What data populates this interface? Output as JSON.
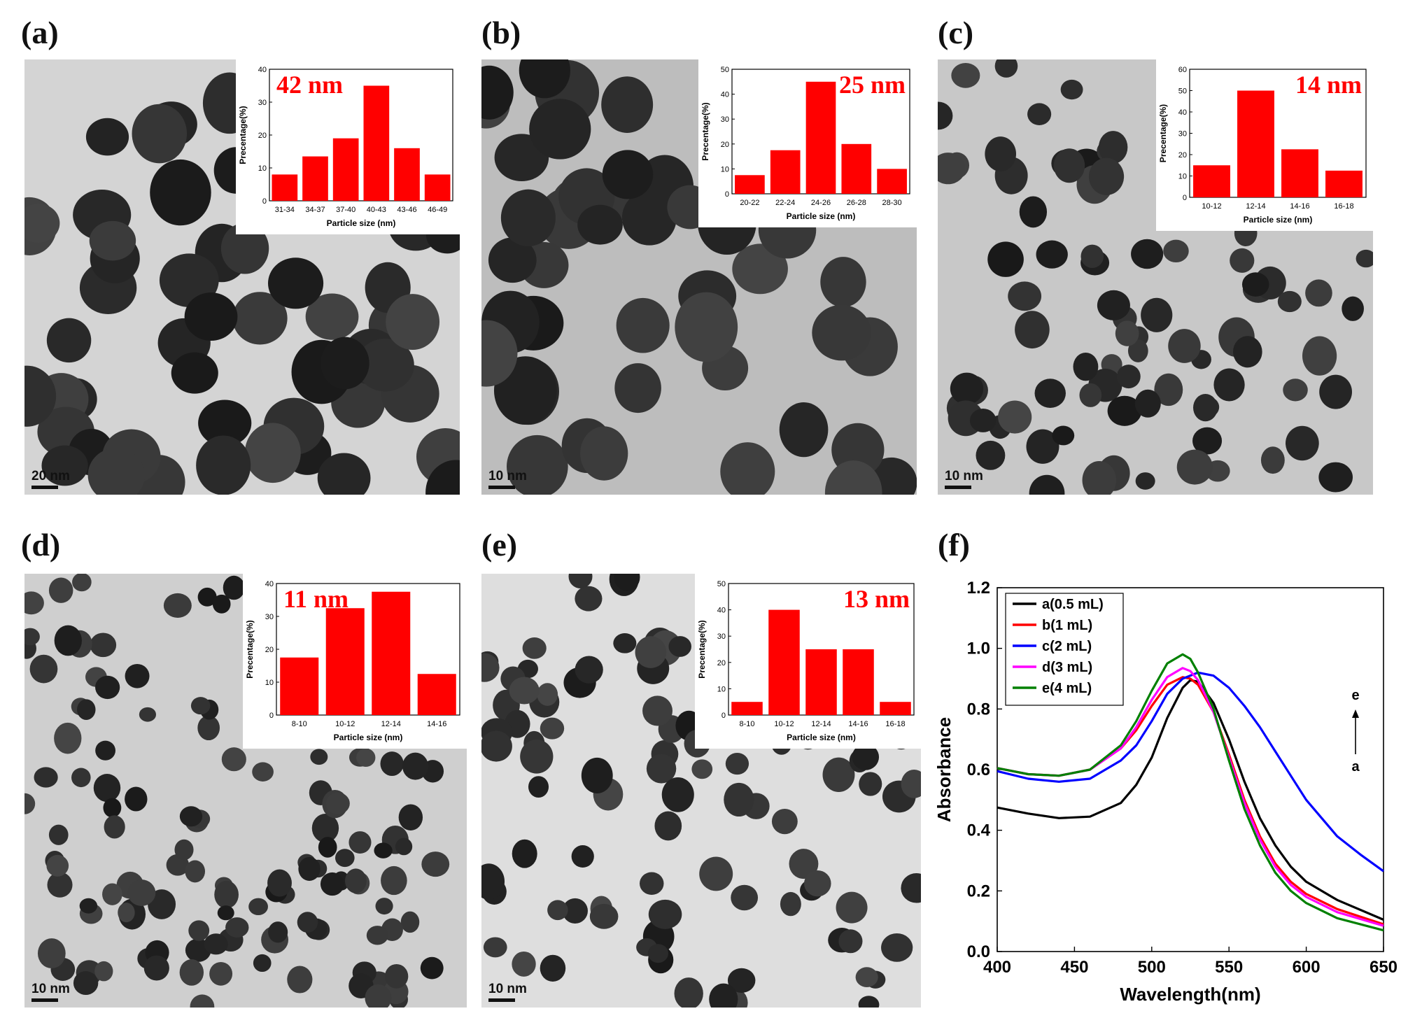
{
  "figure": {
    "panels": [
      {
        "id": "a",
        "label": "(a)",
        "scale_bar": "20 nm",
        "chart_data": {
          "type": "bar",
          "title": "42 nm",
          "xlabel": "Particle size (nm)",
          "ylabel": "Precentage(%)",
          "categories": [
            "31-34",
            "34-37",
            "37-40",
            "40-43",
            "43-46",
            "46-49"
          ],
          "values": [
            8,
            13.5,
            19,
            35,
            16,
            8
          ],
          "ylim": [
            0,
            40
          ],
          "yticks": [
            0,
            10,
            20,
            30,
            40
          ]
        }
      },
      {
        "id": "b",
        "label": "(b)",
        "scale_bar": "10 nm",
        "chart_data": {
          "type": "bar",
          "title": "25 nm",
          "xlabel": "Particle size (nm)",
          "ylabel": "Precentage(%)",
          "categories": [
            "20-22",
            "22-24",
            "24-26",
            "26-28",
            "28-30"
          ],
          "values": [
            7.5,
            17.5,
            45,
            20,
            10
          ],
          "ylim": [
            0,
            50
          ],
          "yticks": [
            0,
            10,
            20,
            30,
            40,
            50
          ]
        }
      },
      {
        "id": "c",
        "label": "(c)",
        "scale_bar": "10 nm",
        "chart_data": {
          "type": "bar",
          "title": "14 nm",
          "xlabel": "Particle size (nm)",
          "ylabel": "Precentage(%)",
          "categories": [
            "10-12",
            "12-14",
            "14-16",
            "16-18"
          ],
          "values": [
            15,
            50,
            22.5,
            12.5
          ],
          "ylim": [
            0,
            60
          ],
          "yticks": [
            0,
            10,
            20,
            30,
            40,
            50,
            60
          ]
        }
      },
      {
        "id": "d",
        "label": "(d)",
        "scale_bar": "10 nm",
        "chart_data": {
          "type": "bar",
          "title": "11 nm",
          "xlabel": "Particle size (nm)",
          "ylabel": "Precentage(%)",
          "categories": [
            "8-10",
            "10-12",
            "12-14",
            "14-16"
          ],
          "values": [
            17.5,
            32.5,
            37.5,
            12.5
          ],
          "ylim": [
            0,
            40
          ],
          "yticks": [
            0,
            10,
            20,
            30,
            40
          ]
        }
      },
      {
        "id": "e",
        "label": "(e)",
        "scale_bar": "10 nm",
        "chart_data": {
          "type": "bar",
          "title": "13 nm",
          "xlabel": "Particle size (nm)",
          "ylabel": "Precentage(%)",
          "categories": [
            "8-10",
            "10-12",
            "12-14",
            "14-16",
            "16-18"
          ],
          "values": [
            5,
            40,
            25,
            25,
            5
          ],
          "ylim": [
            0,
            50
          ],
          "yticks": [
            0,
            10,
            20,
            30,
            40,
            50
          ]
        }
      }
    ],
    "panel_f": {
      "label": "(f)",
      "chart_data": {
        "type": "line",
        "xlabel": "Wavelength(nm)",
        "ylabel": "Absorbance",
        "xlim": [
          400,
          650
        ],
        "ylim": [
          0,
          1.2
        ],
        "xticks": [
          400,
          450,
          500,
          550,
          600,
          650
        ],
        "yticks": [
          0.0,
          0.2,
          0.4,
          0.6,
          0.8,
          1.0,
          1.2
        ],
        "legend_position": "top-left",
        "arrow_top": "e",
        "arrow_bottom": "a",
        "series": [
          {
            "name": "a(0.5 mL)",
            "color": "#000000",
            "x": [
              400,
              420,
              440,
              460,
              480,
              490,
              500,
              510,
              520,
              525,
              530,
              540,
              550,
              560,
              570,
              580,
              590,
              600,
              620,
              650
            ],
            "y": [
              0.475,
              0.455,
              0.44,
              0.445,
              0.49,
              0.55,
              0.64,
              0.77,
              0.87,
              0.895,
              0.89,
              0.82,
              0.7,
              0.56,
              0.44,
              0.35,
              0.28,
              0.23,
              0.17,
              0.105
            ]
          },
          {
            "name": "b(1 mL)",
            "color": "#ff0000",
            "x": [
              400,
              420,
              440,
              460,
              480,
              490,
              500,
              510,
              520,
              525,
              530,
              540,
              550,
              560,
              570,
              580,
              590,
              600,
              620,
              650
            ],
            "y": [
              0.605,
              0.585,
              0.58,
              0.6,
              0.67,
              0.73,
              0.81,
              0.88,
              0.905,
              0.9,
              0.88,
              0.79,
              0.65,
              0.5,
              0.38,
              0.29,
              0.23,
              0.19,
              0.14,
              0.09
            ]
          },
          {
            "name": "c(2 mL)",
            "color": "#0000ff",
            "x": [
              400,
              420,
              440,
              460,
              480,
              490,
              500,
              510,
              520,
              530,
              540,
              550,
              560,
              570,
              580,
              590,
              600,
              610,
              620,
              635,
              650
            ],
            "y": [
              0.595,
              0.57,
              0.56,
              0.57,
              0.63,
              0.68,
              0.76,
              0.85,
              0.9,
              0.92,
              0.91,
              0.87,
              0.81,
              0.74,
              0.66,
              0.58,
              0.5,
              0.44,
              0.38,
              0.32,
              0.265
            ]
          },
          {
            "name": "d(3 mL)",
            "color": "#ff00ff",
            "x": [
              400,
              420,
              440,
              460,
              480,
              490,
              500,
              510,
              520,
              525,
              530,
              540,
              550,
              560,
              570,
              580,
              590,
              600,
              620,
              650
            ],
            "y": [
              0.605,
              0.585,
              0.58,
              0.6,
              0.67,
              0.74,
              0.83,
              0.905,
              0.935,
              0.925,
              0.895,
              0.79,
              0.64,
              0.49,
              0.37,
              0.28,
              0.22,
              0.18,
              0.13,
              0.085
            ]
          },
          {
            "name": "e(4 mL)",
            "color": "#008000",
            "x": [
              400,
              420,
              440,
              460,
              480,
              490,
              500,
              510,
              520,
              525,
              530,
              540,
              550,
              560,
              570,
              580,
              590,
              600,
              620,
              650
            ],
            "y": [
              0.605,
              0.585,
              0.58,
              0.6,
              0.68,
              0.76,
              0.86,
              0.95,
              0.98,
              0.965,
              0.92,
              0.8,
              0.63,
              0.47,
              0.35,
              0.26,
              0.2,
              0.16,
              0.11,
              0.07
            ]
          }
        ]
      }
    },
    "colors": {
      "bar": "#ff0000",
      "size_label": "#ff0000"
    }
  }
}
